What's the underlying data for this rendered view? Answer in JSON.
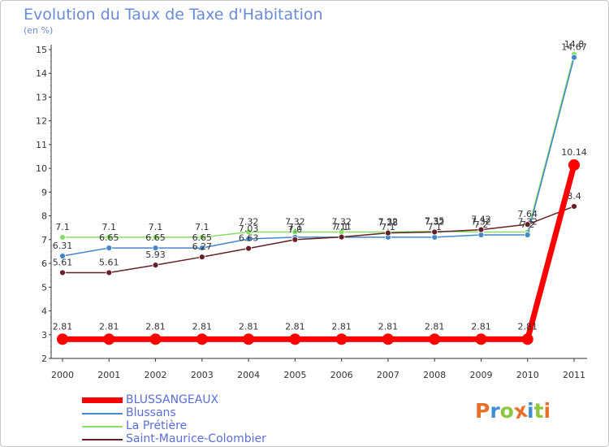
{
  "header": {
    "title": "Evolution du Taux de Taxe d'Habitation",
    "unit": "(en %)"
  },
  "logo": {
    "text": "Proxiti",
    "colors": [
      "#e8702a",
      "#3f8fd6",
      "#8dc63f",
      "#e8702a",
      "#3f8fd6",
      "#8dc63f",
      "#e8702a"
    ]
  },
  "chart_data": {
    "type": "line",
    "title": "Evolution du Taux de Taxe d'Habitation",
    "ylabel": "(en %)",
    "xlabel": "",
    "ylim": [
      2,
      15
    ],
    "yticks": [
      2,
      3,
      4,
      5,
      6,
      7,
      8,
      9,
      10,
      11,
      12,
      13,
      14,
      15
    ],
    "grid": false,
    "legend": "bottom-left",
    "categories": [
      "2000",
      "2001",
      "2002",
      "2003",
      "2004",
      "2005",
      "2006",
      "2007",
      "2008",
      "2009",
      "2010",
      "2011"
    ],
    "series": [
      {
        "name": "La Prétière",
        "color": "#88dd66",
        "values": [
          7.1,
          7.1,
          7.1,
          7.1,
          7.32,
          7.32,
          7.32,
          7.32,
          7.35,
          7.32,
          7.32,
          14.8
        ],
        "labels": [
          "7.1",
          "7.1",
          "7.1",
          "7.1",
          "7.32",
          "7.32",
          "7.32",
          "7.32",
          "7.35",
          "7.32",
          "7.32",
          "14.8"
        ]
      },
      {
        "name": "Blussans",
        "color": "#4488cc",
        "values": [
          6.31,
          6.65,
          6.65,
          6.65,
          7.03,
          7.1,
          7.1,
          7.1,
          7.1,
          7.2,
          7.2,
          14.67
        ],
        "labels": [
          "6.31",
          "6.65",
          "6.65",
          "6.65",
          "7.03",
          "7.1",
          "7.1",
          "7.1",
          "7.1",
          "7.2",
          "7.2",
          "14.67"
        ]
      },
      {
        "name": "Saint-Maurice-Colombier",
        "color": "#661f26",
        "values": [
          5.61,
          5.61,
          5.93,
          6.27,
          6.63,
          7.0,
          7.11,
          7.28,
          7.32,
          7.42,
          7.64,
          8.4
        ],
        "labels": [
          "5.61",
          "5.61",
          "5.93",
          "6.27",
          "6.63",
          "7.0",
          "7.11",
          "7.28",
          "7.32",
          "7.42",
          "7.64",
          "8.4"
        ]
      },
      {
        "name": "BLUSSANGEAUX",
        "color": "#ff0000",
        "thick": true,
        "values": [
          2.81,
          2.81,
          2.81,
          2.81,
          2.81,
          2.81,
          2.81,
          2.81,
          2.81,
          2.81,
          2.81,
          10.14
        ],
        "labels": [
          "2.81",
          "2.81",
          "2.81",
          "2.81",
          "2.81",
          "2.81",
          "2.81",
          "2.81",
          "2.81",
          "2.81",
          "2.81",
          "10.14"
        ]
      }
    ],
    "legend_entries": [
      {
        "name": "BLUSSANGEAUX",
        "color": "#ff0000",
        "thick": true
      },
      {
        "name": "Blussans",
        "color": "#4488cc",
        "thick": false
      },
      {
        "name": "La Prétière",
        "color": "#88dd66",
        "thick": false
      },
      {
        "name": "Saint-Maurice-Colombier",
        "color": "#661f26",
        "thick": false
      }
    ]
  }
}
